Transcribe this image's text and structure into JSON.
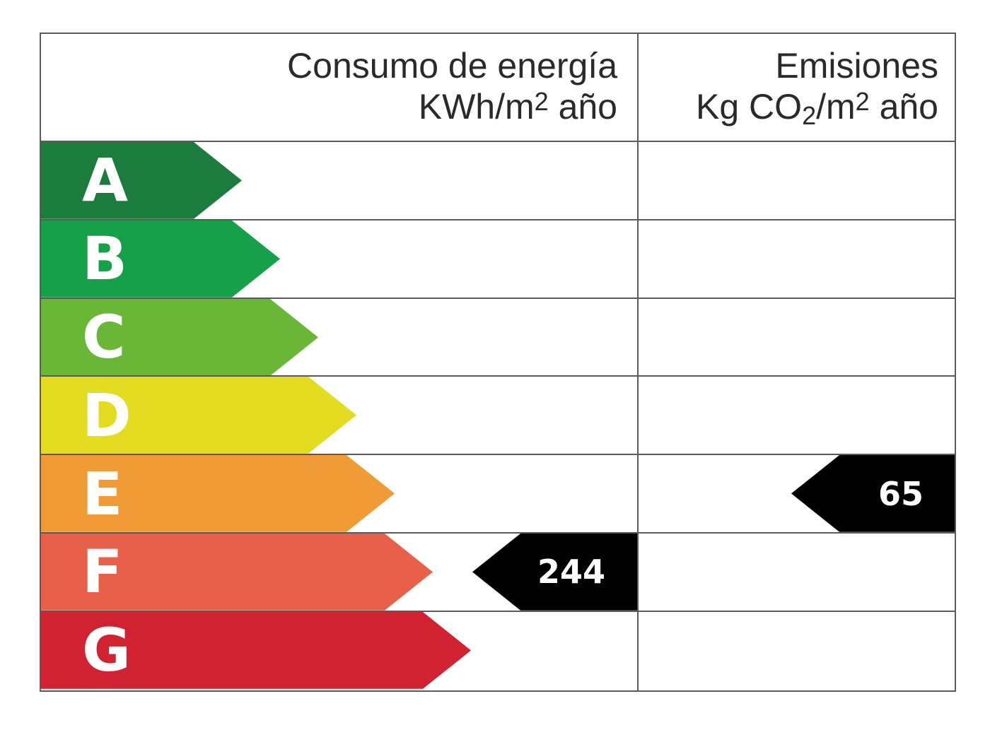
{
  "headers": {
    "energy": {
      "line1": "Consumo de energía",
      "line2_pre": "KWh/m",
      "line2_sup": "2",
      "line2_post": " año"
    },
    "emissions": {
      "line1": "Emisiones",
      "line2_pre": "Kg CO",
      "line2_sub": "2",
      "line2_mid": "/m",
      "line2_sup": "2",
      "line2_post": " año"
    }
  },
  "ratings": [
    {
      "letter": "A",
      "color": "#1b7c3e"
    },
    {
      "letter": "B",
      "color": "#16a04a"
    },
    {
      "letter": "C",
      "color": "#6ab636"
    },
    {
      "letter": "D",
      "color": "#e4dc20"
    },
    {
      "letter": "E",
      "color": "#f19b37"
    },
    {
      "letter": "F",
      "color": "#e9604a"
    },
    {
      "letter": "G",
      "color": "#d12232"
    }
  ],
  "energy_value": {
    "value": "244",
    "rating": "F"
  },
  "emissions_value": {
    "value": "65",
    "rating": "E"
  },
  "marker_color": "#000000"
}
